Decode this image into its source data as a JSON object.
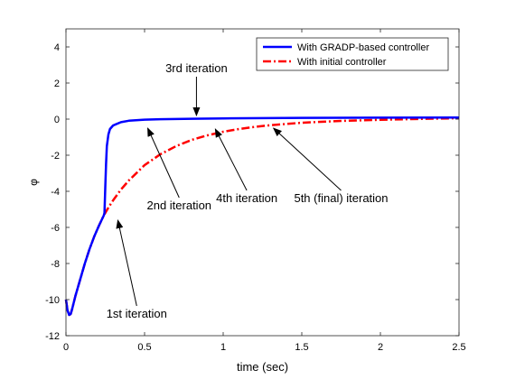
{
  "chart_data": {
    "type": "line",
    "title": "",
    "xlabel": "time (sec)",
    "ylabel": "φ",
    "xlim": [
      0,
      2.5
    ],
    "ylim": [
      -12,
      5
    ],
    "x_ticks": [
      0,
      0.5,
      1,
      1.5,
      2,
      2.5
    ],
    "x_tick_labels": [
      "0",
      "0.5",
      "1",
      "1.5",
      "2",
      "2.5"
    ],
    "y_ticks": [
      -12,
      -10,
      -8,
      -6,
      -4,
      -2,
      0,
      2,
      4
    ],
    "y_tick_labels": [
      "-12",
      "-10",
      "-8",
      "-6",
      "-4",
      "-2",
      "0",
      "2",
      "4"
    ],
    "grid": false,
    "legend_position": "top-right",
    "series": [
      {
        "name": "With GRADP-based controller",
        "color": "#0000ff",
        "line_style": "solid",
        "x": [
          0,
          0.01,
          0.02,
          0.03,
          0.04,
          0.06,
          0.08,
          0.1,
          0.12,
          0.15,
          0.18,
          0.21,
          0.24,
          0.245,
          0.25,
          0.255,
          0.26,
          0.27,
          0.28,
          0.3,
          0.35,
          0.4,
          0.5,
          0.6,
          0.8,
          1.0,
          1.5,
          2.0,
          2.5
        ],
        "y": [
          -10.0,
          -10.6,
          -10.85,
          -10.8,
          -10.5,
          -9.8,
          -9.2,
          -8.6,
          -8.0,
          -7.2,
          -6.5,
          -5.9,
          -5.35,
          -5.2,
          -3.8,
          -2.5,
          -1.5,
          -0.85,
          -0.55,
          -0.35,
          -0.17,
          -0.09,
          -0.03,
          -0.005,
          0.02,
          0.04,
          0.07,
          0.08,
          0.09
        ]
      },
      {
        "name": "With initial controller",
        "color": "#ff0000",
        "line_style": "dash-dot",
        "x": [
          0,
          0.01,
          0.02,
          0.03,
          0.04,
          0.06,
          0.08,
          0.1,
          0.12,
          0.15,
          0.18,
          0.21,
          0.24,
          0.27,
          0.3,
          0.35,
          0.4,
          0.5,
          0.6,
          0.7,
          0.8,
          0.9,
          1.0,
          1.1,
          1.2,
          1.3,
          1.5,
          1.75,
          2.0,
          2.25,
          2.5
        ],
        "y": [
          -10.0,
          -10.6,
          -10.85,
          -10.8,
          -10.5,
          -9.8,
          -9.2,
          -8.6,
          -8.0,
          -7.2,
          -6.5,
          -5.9,
          -5.35,
          -4.9,
          -4.5,
          -3.9,
          -3.4,
          -2.55,
          -1.95,
          -1.5,
          -1.15,
          -0.9,
          -0.7,
          -0.55,
          -0.43,
          -0.34,
          -0.2,
          -0.1,
          -0.04,
          0.01,
          0.05
        ]
      }
    ],
    "annotations": [
      {
        "text": "3rd iteration",
        "text_x": 0.83,
        "text_y": 2.6,
        "arrow_x": 0.83,
        "arrow_y": 0.2
      },
      {
        "text": "2nd iteration",
        "text_x": 0.72,
        "text_y": -5.0,
        "arrow_x": 0.52,
        "arrow_y": -0.5
      },
      {
        "text": "4th iteration",
        "text_x": 1.15,
        "text_y": -4.6,
        "arrow_x": 0.95,
        "arrow_y": -0.55
      },
      {
        "text": "5th (final) iteration",
        "text_x": 1.75,
        "text_y": -4.6,
        "arrow_x": 1.32,
        "arrow_y": -0.5
      },
      {
        "text": "1st iteration",
        "text_x": 0.45,
        "text_y": -11.0,
        "arrow_x": 0.33,
        "arrow_y": -5.6
      }
    ]
  }
}
